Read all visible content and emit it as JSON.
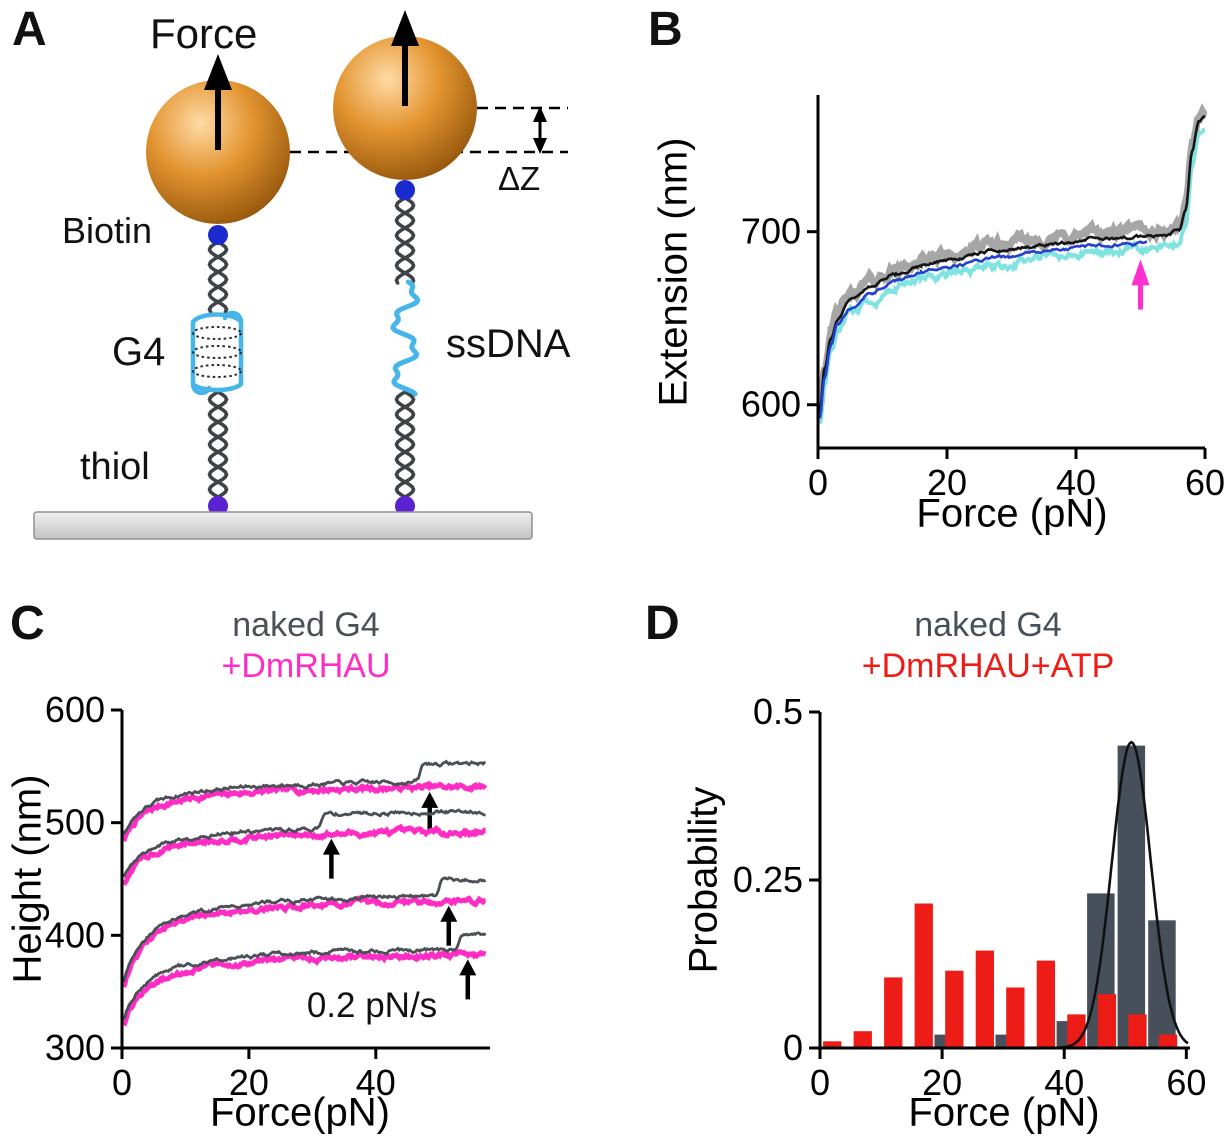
{
  "panels": {
    "a": {
      "label": "A",
      "force_label": "Force",
      "biotin_label": "Biotin",
      "g4_label": "G4",
      "ssdna_label": "ssDNA",
      "thiol_label": "thiol",
      "delta_z_label": "ΔZ",
      "colors": {
        "bead_highlight": "#ffdba6",
        "bead_mid": "#e39430",
        "bead_shadow": "#8a4d06",
        "dna_strand": "#3e4347",
        "g4_ssdna": "#45b5ea",
        "biotin_dot": "#1c2bd0",
        "thiol_dot": "#5a22d2",
        "surface_fill": "#d8d8d8"
      }
    },
    "b": {
      "label": "B",
      "xlabel": "Force (pN)",
      "ylabel": "Extension (nm)",
      "arrow_color": "#ff2fd0"
    },
    "c": {
      "label": "C",
      "legend": [
        {
          "text": "naked G4",
          "color": "#4a5055"
        },
        {
          "text": "+DmRHAU",
          "color": "#ff2dc4"
        }
      ],
      "xlabel": "Force(pN)",
      "ylabel": "Height (nm)",
      "rate_annotation": "0.2 pN/s"
    },
    "d": {
      "label": "D",
      "legend": [
        {
          "text": "naked G4",
          "color": "#47505a"
        },
        {
          "text": "+DmRHAU+ATP",
          "color": "#ee1c16"
        }
      ],
      "xlabel": "Force (pN)",
      "ylabel": "Probability"
    }
  },
  "chart_data": [
    {
      "panel": "B",
      "type": "line",
      "title": "",
      "xlabel": "Force (pN)",
      "ylabel": "Extension (nm)",
      "xlim": [
        0,
        60
      ],
      "ylim": [
        575,
        779
      ],
      "xticks": [
        0,
        20,
        40,
        60
      ],
      "yticks": [
        600,
        700
      ],
      "unfolding_arrow_force_pN": 50,
      "arrow_color": "#ff2fd0",
      "series": [
        {
          "name": "gray",
          "color": "#a6a6a6",
          "x": [
            0.3,
            1,
            2,
            3,
            5,
            8,
            12,
            16,
            20,
            28,
            36,
            44,
            50,
            54,
            56,
            57,
            58,
            59,
            60
          ],
          "y": [
            599,
            623,
            642,
            653,
            663,
            671,
            678,
            683,
            687,
            692,
            696,
            699,
            700,
            701,
            704,
            716,
            749,
            767,
            770
          ]
        },
        {
          "name": "cyan",
          "color": "#7fe3df",
          "x": [
            0.3,
            1,
            2,
            3,
            5,
            8,
            12,
            16,
            20,
            28,
            36,
            44,
            50,
            54,
            56,
            57,
            58,
            59,
            60
          ],
          "y": [
            588,
            612,
            631,
            642,
            652,
            660,
            667,
            672,
            676,
            681,
            685,
            688,
            689,
            690,
            693,
            705,
            738,
            756,
            759
          ]
        },
        {
          "name": "black",
          "color": "#151515",
          "x": [
            0.3,
            1,
            2,
            3,
            5,
            8,
            12,
            16,
            20,
            28,
            36,
            44,
            50,
            54,
            56,
            57,
            58,
            59,
            60
          ],
          "y": [
            596,
            620,
            639,
            650,
            660,
            668,
            675,
            680,
            684,
            689,
            693,
            696,
            697,
            698,
            701,
            713,
            746,
            764,
            767
          ]
        },
        {
          "name": "blue",
          "color": "#2340d0",
          "x": [
            0.3,
            1,
            2,
            3,
            5,
            8,
            12,
            16,
            20,
            28,
            36,
            44,
            48,
            51
          ],
          "y": [
            592,
            616,
            635,
            646,
            656,
            664,
            671,
            676,
            680,
            685,
            689,
            692,
            693,
            694
          ]
        }
      ]
    },
    {
      "panel": "C",
      "type": "line",
      "title": "",
      "xlabel": "Force(pN)",
      "ylabel": "Height (nm)",
      "xlim": [
        0,
        58
      ],
      "ylim": [
        300,
        600
      ],
      "xticks": [
        0,
        20,
        40
      ],
      "yticks": [
        300,
        400,
        500,
        600
      ],
      "pull_rate_label": "0.2 pN/s",
      "legend": [
        "naked G4",
        "+DmRHAU"
      ],
      "colors": {
        "naked": "#4a5055",
        "dmrhau": "#ff2dc4"
      },
      "series_pairs": [
        {
          "start_nm": 485,
          "saturation_nm": 540,
          "unfold_force_pN": 47,
          "unfold_step_nm": 16
        },
        {
          "start_nm": 447,
          "saturation_nm": 500,
          "unfold_force_pN": 31.5,
          "unfold_step_nm": 13
        },
        {
          "start_nm": 352,
          "saturation_nm": 441,
          "unfold_force_pN": 50,
          "unfold_step_nm": 14
        },
        {
          "start_nm": 320,
          "saturation_nm": 392,
          "unfold_force_pN": 53,
          "unfold_step_nm": 14
        }
      ]
    },
    {
      "panel": "D",
      "type": "bar",
      "title": "",
      "xlabel": "Force (pN)",
      "ylabel": "Probability",
      "xlim": [
        0,
        60.6
      ],
      "ylim": [
        0,
        0.5
      ],
      "xticks": [
        0,
        20,
        40,
        60
      ],
      "yticks": [
        0,
        0.25,
        0.5
      ],
      "series": [
        {
          "name": "naked G4",
          "color": "#47505a",
          "bin_width_pN": 4.5,
          "centers": [
            21,
            31,
            41,
            46,
            51,
            56
          ],
          "values": [
            0.02,
            0.02,
            0.04,
            0.23,
            0.45,
            0.19
          ]
        },
        {
          "name": "+DmRHAU+ATP",
          "color": "#ee1c16",
          "bin_width_pN": 3,
          "centers": [
            2,
            7,
            12,
            17,
            22,
            27,
            32,
            37,
            42,
            47,
            52,
            57
          ],
          "values": [
            0.01,
            0.025,
            0.105,
            0.215,
            0.115,
            0.145,
            0.09,
            0.13,
            0.05,
            0.08,
            0.05,
            0.02
          ]
        }
      ],
      "fit_curve": {
        "type": "gaussian",
        "mu": 51,
        "sigma": 3.2,
        "amplitude": 0.455,
        "color": "#111111"
      }
    }
  ]
}
